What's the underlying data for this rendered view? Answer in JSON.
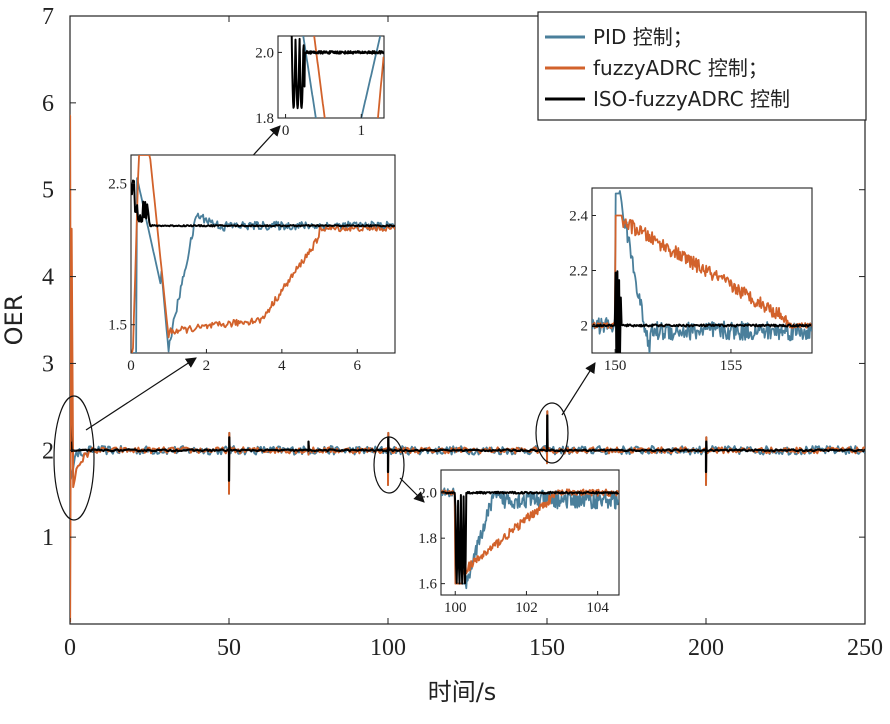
{
  "chart_data": {
    "type": "line",
    "xlabel": "时间/s",
    "ylabel": "OER",
    "xlim": [
      0,
      250
    ],
    "ylim": [
      0,
      7
    ],
    "x_ticks": [
      "0",
      "50",
      "100",
      "150",
      "200",
      "250"
    ],
    "y_ticks": [
      "1",
      "2",
      "3",
      "4",
      "5",
      "6",
      "7"
    ],
    "legend_position": "top-right",
    "setpoint": 2.0,
    "disturbance_times": [
      0,
      50,
      75,
      100,
      150,
      200
    ],
    "series": [
      {
        "name": "PID 控制；",
        "color": "#4a7f9b",
        "noise": 0.05
      },
      {
        "name": "fuzzyADRC 控制；",
        "color": "#d2622b",
        "noise": 0.035
      },
      {
        "name": "ISO-fuzzyADRC 控制",
        "color": "#000000",
        "noise": 0.01
      }
    ],
    "insets": [
      {
        "name": "inset-start-zoom",
        "xlim": [
          0,
          7
        ],
        "ylim": [
          1.3,
          2.7
        ],
        "x_ticks": [
          "0",
          "2",
          "4",
          "6"
        ],
        "y_ticks": [
          "1.5",
          "2.5"
        ]
      },
      {
        "name": "inset-start-detail",
        "xlim": [
          -0.1,
          1.3
        ],
        "ylim": [
          1.8,
          2.05
        ],
        "x_ticks": [
          "0",
          "1"
        ],
        "y_ticks": [
          "1.8",
          "2.0"
        ]
      },
      {
        "name": "inset-t150",
        "xlim": [
          149,
          158.5
        ],
        "ylim": [
          1.9,
          2.5
        ],
        "x_ticks": [
          "150",
          "155"
        ],
        "y_ticks": [
          "2",
          "2.2",
          "2.4"
        ]
      },
      {
        "name": "inset-t100",
        "xlim": [
          99.6,
          104.6
        ],
        "ylim": [
          1.55,
          2.1
        ],
        "x_ticks": [
          "100",
          "102",
          "104"
        ],
        "y_ticks": [
          "1.6",
          "1.8",
          "2.0"
        ]
      }
    ]
  }
}
